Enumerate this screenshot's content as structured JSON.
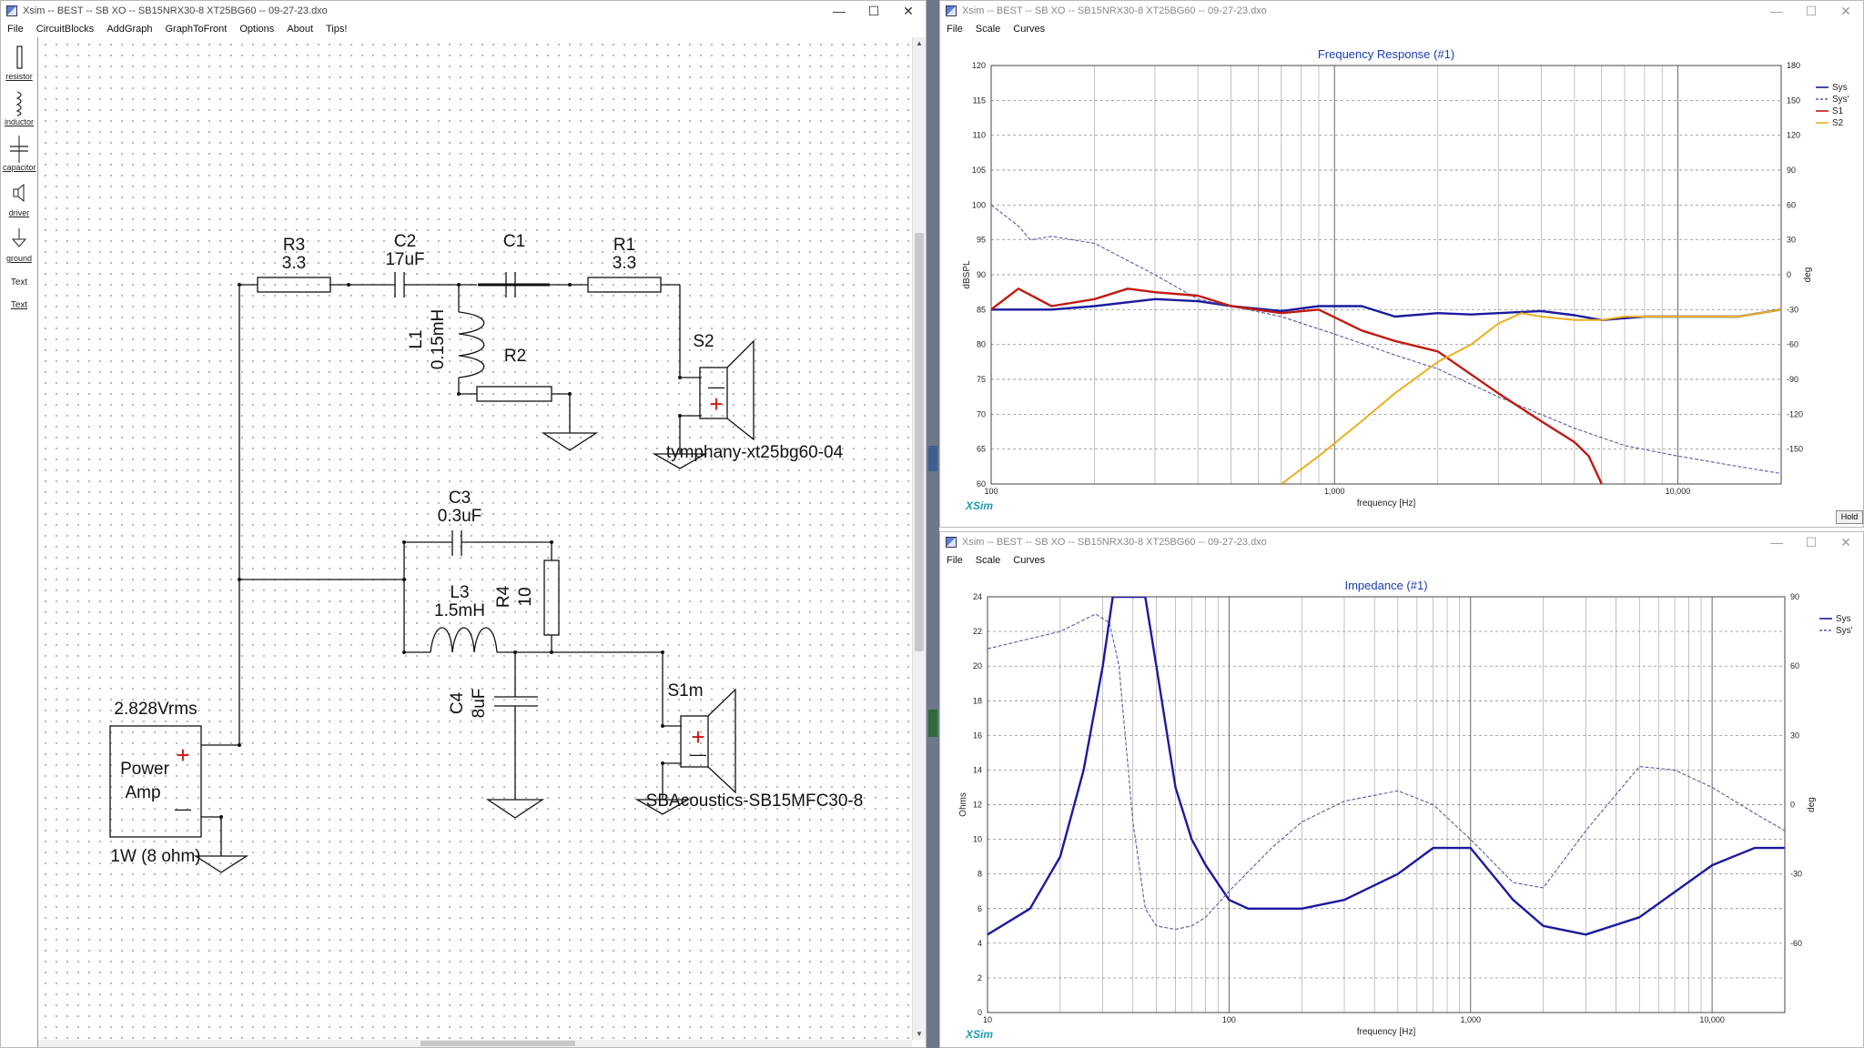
{
  "schematic_window": {
    "title": "Xsim -- BEST -- SB XO -- SB15NRX30-8 XT25BG60 -- 09-27-23.dxo",
    "menu": [
      "File",
      "CircuitBlocks",
      "AddGraph",
      "GraphToFront",
      "Options",
      "About",
      "Tips!"
    ],
    "toolbox": [
      {
        "label": "resistor",
        "icon": "resistor-icon"
      },
      {
        "label": "inductor",
        "icon": "inductor-icon"
      },
      {
        "label": "capacitor",
        "icon": "capacitor-icon"
      },
      {
        "label": "driver",
        "icon": "driver-icon"
      },
      {
        "label": "ground",
        "icon": "ground-icon"
      },
      {
        "label": "Text",
        "icon": "text-icon"
      },
      {
        "label": "Text",
        "icon": "text-link"
      }
    ],
    "components": {
      "r3_name": "R3",
      "r3_value": "3.3",
      "c2_name": "C2",
      "c2_value": "17uF",
      "c1_name": "C1",
      "r1_name": "R1",
      "r1_value": "3.3",
      "l1_name": "L1",
      "l1_value": "0.15mH",
      "r2_name": "R2",
      "s2_name": "S2",
      "s2_model": "tymphany-xt25bg60-04",
      "c3_name": "C3",
      "c3_value": "0.3uF",
      "l3_name": "L3",
      "l3_value": "1.5mH",
      "r4_name": "R4",
      "r4_value": "10",
      "c4_name": "C4",
      "c4_value": "8uF",
      "s1_name": "S1m",
      "s1_model": "SBAcoustics-SB15MFC30-8",
      "amp_voltage": "2.828Vrms",
      "amp_line1": "Power",
      "amp_line2": "Amp",
      "amp_power": "1W (8 ohm)",
      "plus": "+",
      "minus": "—"
    }
  },
  "freq_window": {
    "title": "Xsim -- BEST -- SB XO -- SB15NRX30-8 XT25BG60 -- 09-27-23.dxo",
    "menu": [
      "File",
      "Scale",
      "Curves"
    ],
    "hold_label": "Hold",
    "brand": "XSim"
  },
  "imp_window": {
    "title": "Xsim -- BEST -- SB XO -- SB15NRX30-8 XT25BG60 -- 09-27-23.dxo",
    "menu": [
      "File",
      "Scale",
      "Curves"
    ],
    "brand": "XSim"
  },
  "colors": {
    "sys": "#1a1aa0",
    "sys_prime": "#5b5b9e",
    "s1": "#c01a10",
    "s2": "#e8b020",
    "title": "#1a3bb5",
    "brand": "#1c9ab0"
  },
  "chart_data": [
    {
      "type": "line",
      "title": "Frequency Response (#1)",
      "xlabel": "frequency [Hz]",
      "ylabel": "dBSPL",
      "y2label": "deg",
      "xscale": "log",
      "xlim": [
        100,
        20000
      ],
      "ylim": [
        60,
        120
      ],
      "y2lim": [
        -180,
        180
      ],
      "x_ticks": [
        100,
        1000,
        10000
      ],
      "x_tick_labels": [
        "100",
        "1,000",
        "10,000"
      ],
      "y_ticks": [
        60,
        65,
        70,
        75,
        80,
        85,
        90,
        95,
        100,
        105,
        110,
        115,
        120
      ],
      "y2_ticks": [
        -150,
        -120,
        -90,
        -60,
        -30,
        0,
        30,
        60,
        90,
        120,
        150,
        180
      ],
      "grid": true,
      "legend_position": "top-right",
      "series": [
        {
          "name": "Sys",
          "style": "solid",
          "x": [
            100,
            150,
            200,
            300,
            400,
            500,
            700,
            900,
            1200,
            1500,
            2000,
            2500,
            3000,
            4000,
            5000,
            6000,
            8000,
            10000,
            15000,
            20000
          ],
          "y": [
            85,
            85,
            85.5,
            86.5,
            86.2,
            85.5,
            84.8,
            85.5,
            85.5,
            84,
            84.5,
            84.3,
            84.5,
            84.8,
            84.2,
            83.5,
            84,
            84,
            84,
            85
          ]
        },
        {
          "name": "Sys'",
          "style": "dashed",
          "x": [
            100,
            120,
            130,
            150,
            200,
            300,
            400,
            500,
            700,
            1000,
            1500,
            2000,
            3000,
            5000,
            7000,
            10000,
            15000,
            20000
          ],
          "y": [
            100,
            97,
            95,
            95.5,
            94.5,
            90,
            86.5,
            85.5,
            84,
            81.5,
            78.5,
            76.5,
            72.5,
            68,
            65.5,
            64,
            62.5,
            61.5
          ]
        },
        {
          "name": "S1",
          "style": "solid",
          "x": [
            100,
            120,
            150,
            200,
            250,
            300,
            400,
            500,
            700,
            900,
            1200,
            1500,
            2000,
            3000,
            4000,
            5000,
            5500,
            6000
          ],
          "y": [
            85,
            88,
            85.5,
            86.5,
            88,
            87.5,
            87,
            85.5,
            84.5,
            85,
            82,
            80.5,
            79,
            73,
            69,
            66,
            64,
            60
          ]
        },
        {
          "name": "S2",
          "style": "solid",
          "x": [
            700,
            900,
            1200,
            1500,
            2000,
            2500,
            3000,
            3500,
            4000,
            5000,
            6000,
            7000,
            8000,
            10000,
            15000,
            20000
          ],
          "y": [
            60,
            64,
            69,
            73,
            77.5,
            80,
            83,
            84.5,
            84,
            83.5,
            83.5,
            84,
            84,
            84,
            84,
            85
          ]
        }
      ]
    },
    {
      "type": "line",
      "title": "Impedance (#1)",
      "xlabel": "frequency [Hz]",
      "ylabel": "Ohms",
      "y2label": "deg",
      "xscale": "log",
      "xlim": [
        10,
        20000
      ],
      "ylim": [
        0,
        24
      ],
      "y2lim": [
        -90,
        90
      ],
      "x_ticks": [
        10,
        100,
        1000,
        10000
      ],
      "x_tick_labels": [
        "10",
        "100",
        "1,000",
        "10,000"
      ],
      "y_ticks": [
        0,
        2,
        4,
        6,
        8,
        10,
        12,
        14,
        16,
        18,
        20,
        22,
        24
      ],
      "y2_ticks": [
        -60,
        -30,
        0,
        30,
        60,
        90
      ],
      "grid": true,
      "legend_position": "top-right",
      "series": [
        {
          "name": "Sys",
          "style": "solid",
          "x": [
            10,
            15,
            20,
            25,
            30,
            33,
            40,
            45,
            50,
            60,
            70,
            80,
            100,
            120,
            150,
            200,
            300,
            500,
            700,
            1000,
            1500,
            2000,
            3000,
            5000,
            10000,
            15000,
            20000
          ],
          "y": [
            4.5,
            6,
            9,
            14,
            20,
            24,
            24,
            24,
            20,
            13,
            10,
            8.5,
            6.5,
            6,
            6,
            6,
            6.5,
            8,
            9.5,
            9.5,
            6.5,
            5,
            4.5,
            5.5,
            8.5,
            9.5,
            9.5
          ]
        },
        {
          "name": "Sys'",
          "style": "dashed",
          "x": [
            10,
            20,
            28,
            32,
            35,
            40,
            45,
            50,
            60,
            70,
            80,
            100,
            150,
            200,
            300,
            500,
            700,
            1000,
            1500,
            2000,
            3000,
            5000,
            7000,
            10000,
            15000,
            20000
          ],
          "y": [
            21,
            22,
            23,
            22.5,
            20,
            11,
            6,
            5,
            4.8,
            5,
            5.5,
            7,
            9.5,
            11,
            12.2,
            12.8,
            12,
            10,
            7.5,
            7.2,
            10.5,
            14.2,
            14,
            13,
            11.5,
            10.5
          ]
        }
      ]
    }
  ]
}
